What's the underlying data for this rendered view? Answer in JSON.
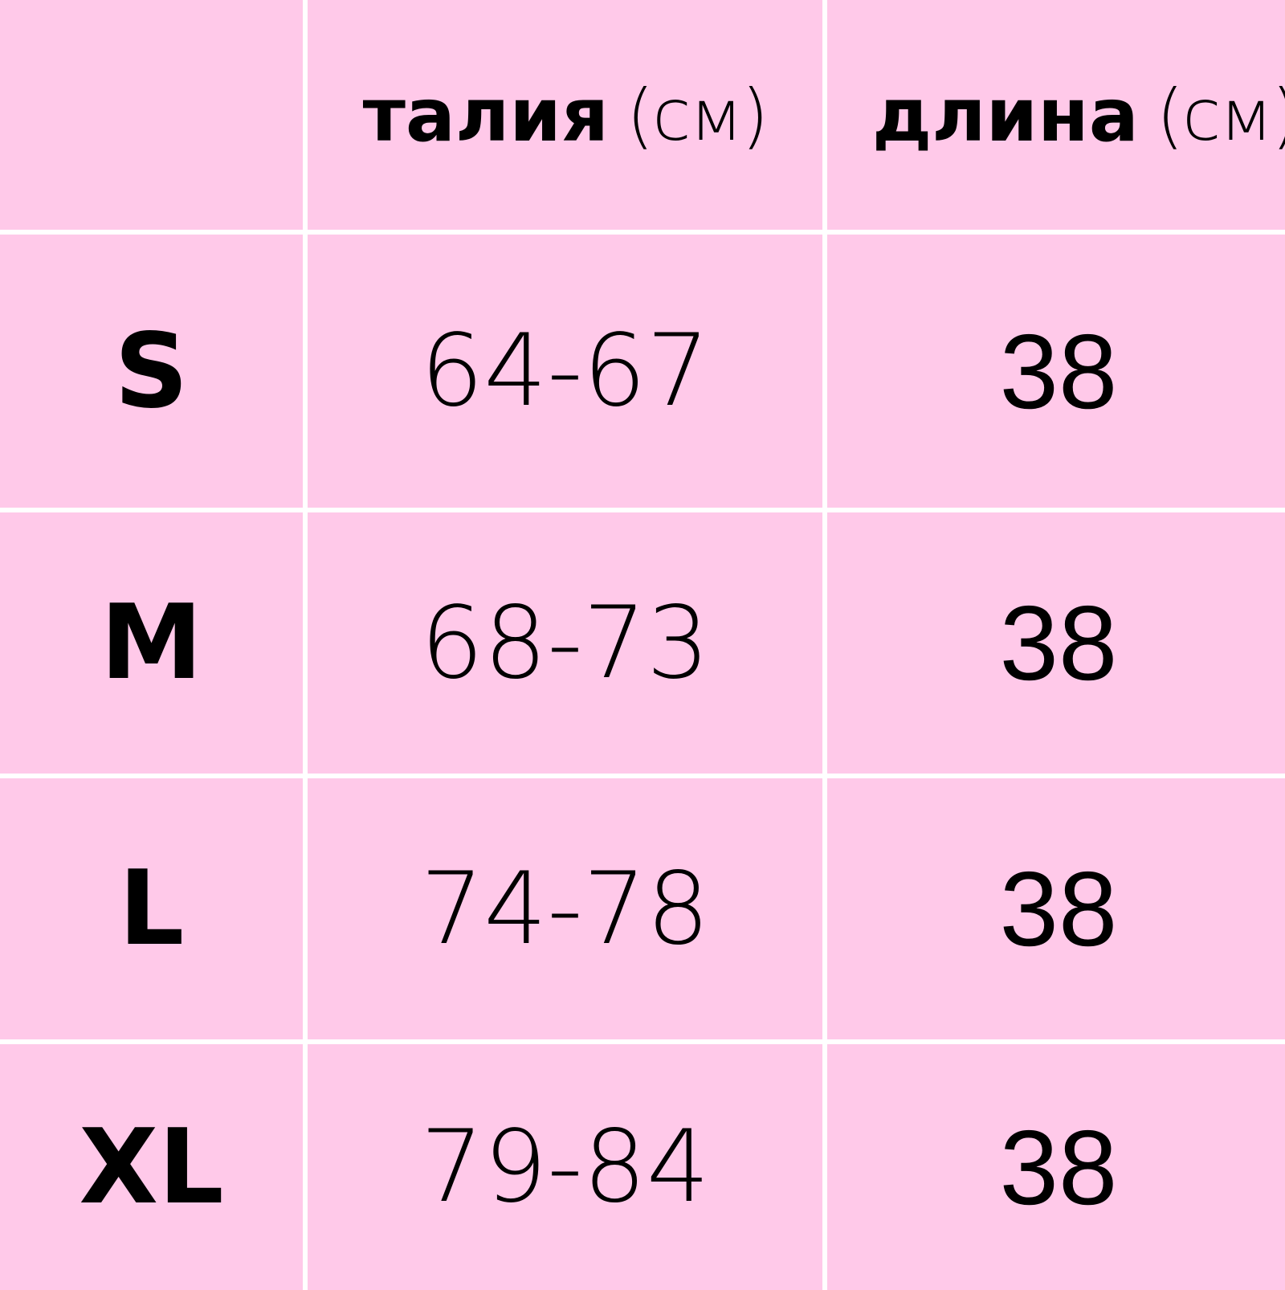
{
  "table": {
    "headers": [
      {
        "label": "",
        "unit": ""
      },
      {
        "label": "талия",
        "unit": "(см)"
      },
      {
        "label": "длина",
        "unit": "(см)"
      }
    ],
    "rows": [
      {
        "size": "S",
        "waist": "64-67",
        "length": "38"
      },
      {
        "size": "M",
        "waist": "68-73",
        "length": "38"
      },
      {
        "size": "L",
        "waist": "74-78",
        "length": "38"
      },
      {
        "size": "XL",
        "waist": "79-84",
        "length": "38"
      }
    ]
  },
  "colors": {
    "cell_background": "#ffc9e9",
    "grid_lines": "#ffffff",
    "text": "#000000"
  }
}
